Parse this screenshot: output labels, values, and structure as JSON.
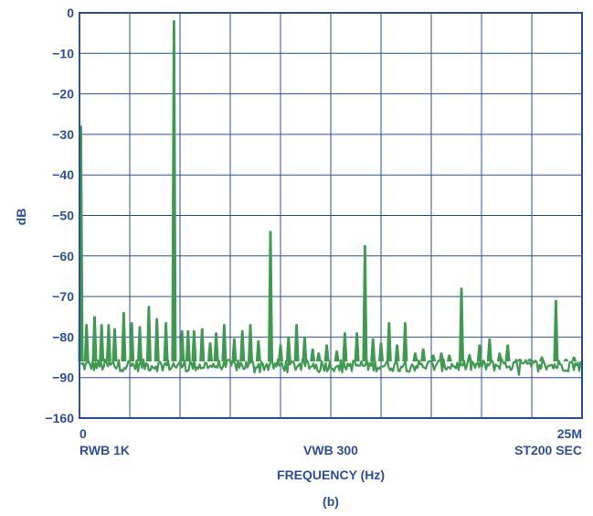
{
  "chart_data": {
    "type": "line",
    "xlabel": "FREQUENCY (Hz)",
    "ylabel": "dB",
    "caption": "(b)",
    "x_tick_labels": {
      "start": "0",
      "end": "25M"
    },
    "footer": {
      "left": "RWB 1K",
      "center": "VWB 300",
      "right": "ST200 SEC"
    },
    "y_tick_labels": [
      "0",
      "−10",
      "−20",
      "−30",
      "−40",
      "−50",
      "−60",
      "−70",
      "−80",
      "−90",
      "−160"
    ],
    "xlim": [
      0,
      25
    ],
    "x_unit": "MHz",
    "grid": true,
    "grid_divisions": {
      "x": 10,
      "y": 10
    },
    "colors": {
      "trace": "#3e9a4f",
      "axis": "#2b4f9c",
      "grid": "#2b4f9c"
    },
    "noise_floor_db": -87,
    "series": [
      {
        "peaks": [
          {
            "x": 0.0,
            "y": -28
          },
          {
            "x": 4.7,
            "y": -2
          },
          {
            "x": 9.5,
            "y": -54
          },
          {
            "x": 14.2,
            "y": -57.5
          },
          {
            "x": 19.0,
            "y": -68
          },
          {
            "x": 23.7,
            "y": -71
          },
          {
            "x": 0.35,
            "y": -77
          },
          {
            "x": 0.75,
            "y": -75
          },
          {
            "x": 1.1,
            "y": -77
          },
          {
            "x": 1.45,
            "y": -77
          },
          {
            "x": 1.75,
            "y": -78
          },
          {
            "x": 2.2,
            "y": -74
          },
          {
            "x": 2.6,
            "y": -76.5
          },
          {
            "x": 3.0,
            "y": -77.5
          },
          {
            "x": 3.45,
            "y": -72.5
          },
          {
            "x": 3.85,
            "y": -75.5
          },
          {
            "x": 4.3,
            "y": -76.5
          },
          {
            "x": 5.1,
            "y": -78.5
          },
          {
            "x": 5.4,
            "y": -78.5
          },
          {
            "x": 5.7,
            "y": -78.5
          },
          {
            "x": 6.1,
            "y": -78
          },
          {
            "x": 6.5,
            "y": -81.5
          },
          {
            "x": 6.8,
            "y": -79
          },
          {
            "x": 7.2,
            "y": -77
          },
          {
            "x": 7.7,
            "y": -80.5
          },
          {
            "x": 8.1,
            "y": -78.5
          },
          {
            "x": 8.5,
            "y": -77
          },
          {
            "x": 8.9,
            "y": -81
          },
          {
            "x": 10.0,
            "y": -82
          },
          {
            "x": 10.4,
            "y": -80
          },
          {
            "x": 10.8,
            "y": -77
          },
          {
            "x": 11.2,
            "y": -80
          },
          {
            "x": 11.6,
            "y": -83
          },
          {
            "x": 11.9,
            "y": -84
          },
          {
            "x": 12.3,
            "y": -82
          },
          {
            "x": 12.8,
            "y": -83.5
          },
          {
            "x": 13.2,
            "y": -79
          },
          {
            "x": 13.8,
            "y": -79
          },
          {
            "x": 14.6,
            "y": -80.5
          },
          {
            "x": 15.0,
            "y": -81.5
          },
          {
            "x": 15.4,
            "y": -76.5
          },
          {
            "x": 15.8,
            "y": -82
          },
          {
            "x": 16.2,
            "y": -76.5
          },
          {
            "x": 16.7,
            "y": -84
          },
          {
            "x": 17.1,
            "y": -83
          },
          {
            "x": 17.6,
            "y": -84.5
          },
          {
            "x": 18.0,
            "y": -84
          },
          {
            "x": 18.4,
            "y": -84.5
          },
          {
            "x": 19.4,
            "y": -84.5
          },
          {
            "x": 19.9,
            "y": -82
          },
          {
            "x": 20.4,
            "y": -80.5
          },
          {
            "x": 20.9,
            "y": -84
          },
          {
            "x": 21.3,
            "y": -82
          },
          {
            "x": 21.9,
            "y": -85.5
          },
          {
            "x": 22.4,
            "y": -85.5
          },
          {
            "x": 23.0,
            "y": -85
          },
          {
            "x": 24.2,
            "y": -85.5
          },
          {
            "x": 24.6,
            "y": -85
          }
        ]
      }
    ]
  }
}
